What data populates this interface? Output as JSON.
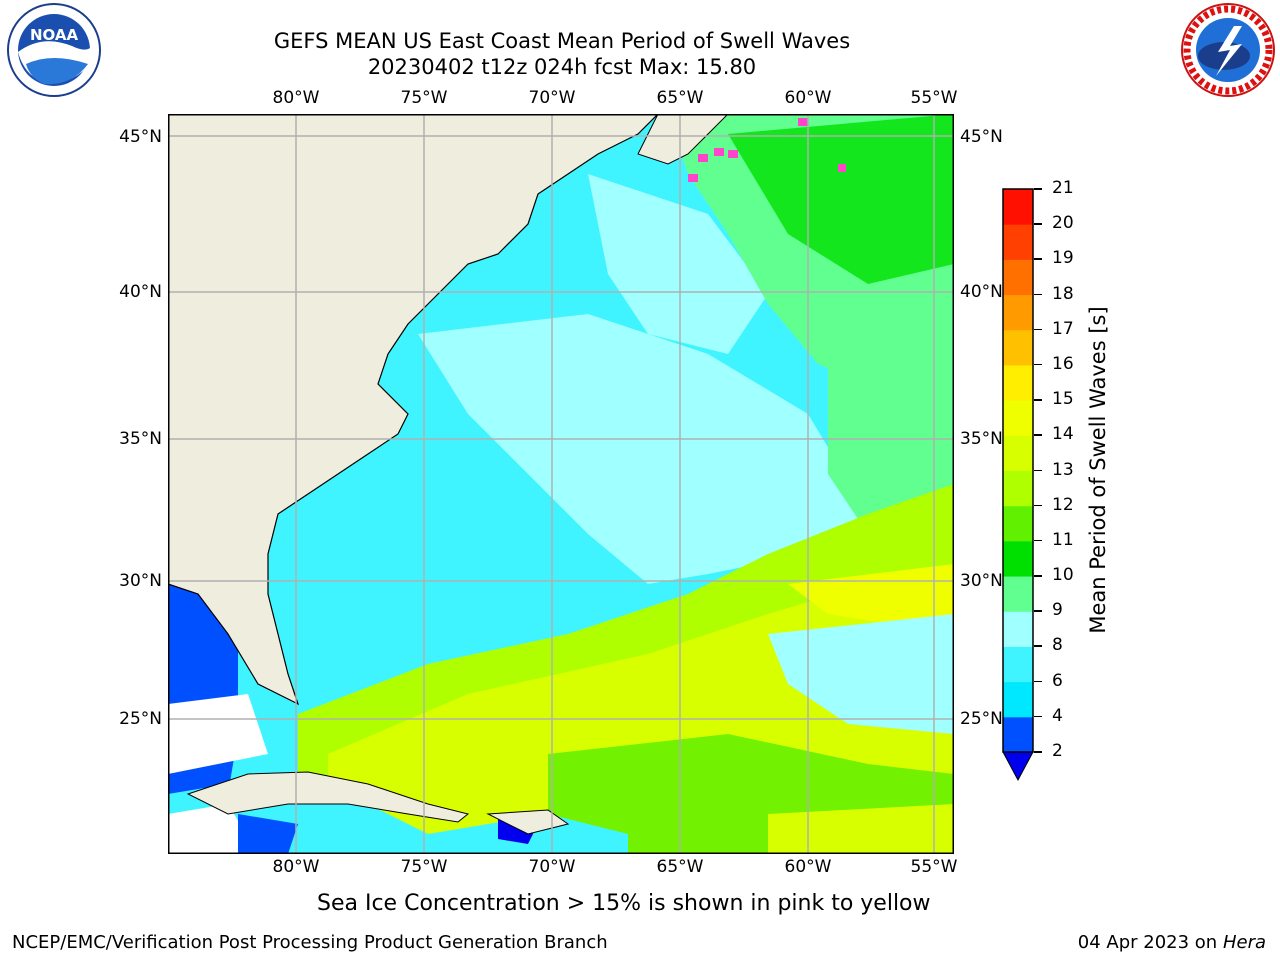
{
  "header": {
    "title_line1": "GEFS MEAN US East Coast Mean Period of Swell Waves",
    "title_line2": "20230402 t12z 024h fcst   Max: 15.80"
  },
  "logos": {
    "left": {
      "text": "NOAA",
      "icon": "noaa-logo"
    },
    "right": {
      "text": "NATIONAL WEATHER SERVICE",
      "icon": "nws-logo"
    }
  },
  "map": {
    "lon_labels": [
      "80°W",
      "75°W",
      "70°W",
      "65°W",
      "60°W",
      "55°W"
    ],
    "lat_labels_left": [
      "45°N",
      "40°N",
      "35°N",
      "30°N",
      "25°N"
    ],
    "lat_labels_right": [
      "45°N",
      "40°N",
      "35°N",
      "30°N",
      "25°N"
    ],
    "colors": {
      "land": "#efeddd",
      "grid": "#b0b0b0",
      "coast": "#000000"
    }
  },
  "colorbar": {
    "label": "Mean Period of Swell Waves [s]",
    "ticks": [
      "2",
      "4",
      "6",
      "8",
      "9",
      "10",
      "11",
      "12",
      "13",
      "14",
      "15",
      "16",
      "17",
      "18",
      "19",
      "20",
      "21"
    ],
    "colors": [
      "#0050ff",
      "#00e8ff",
      "#40f4ff",
      "#a0ffff",
      "#60ff90",
      "#00e000",
      "#60f000",
      "#b0ff00",
      "#d8ff00",
      "#f0ff00",
      "#ffee00",
      "#ffc000",
      "#ff9a00",
      "#ff7000",
      "#ff4000",
      "#ff1000"
    ],
    "extend_color": "#0000ee"
  },
  "caption": "Sea Ice Concentration > 15% is shown in pink to yellow",
  "footer": {
    "left": "NCEP/EMC/Verification Post Processing Product Generation Branch",
    "right_date": "04 Apr 2023 on ",
    "right_host": "Hera"
  }
}
